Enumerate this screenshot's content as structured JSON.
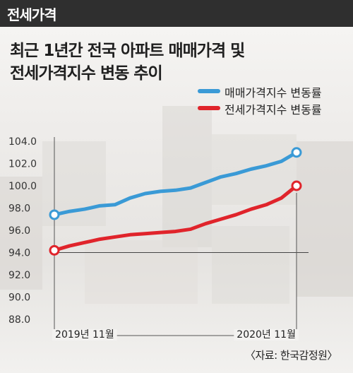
{
  "header": {
    "tag": "전세가격"
  },
  "title_lines": [
    "최근 1년간 전국 아파트 매매가격 및",
    "전세가격지수 변동 추이"
  ],
  "source": "〈자료: 한국감정원〉",
  "colors": {
    "sale": "#3a9ad6",
    "jeonse": "#e0242b",
    "header_bg": "#2f2f2f"
  },
  "chart_data": {
    "type": "line",
    "y_tick_labels": [
      "104.0",
      "102.0",
      "100.0",
      "98.0",
      "96.0",
      "94.0",
      "92.0",
      "90.0",
      "88.0"
    ],
    "ylim": [
      88,
      104
    ],
    "x_tick_labels": [
      "2019년 11월",
      "2020년 11월"
    ],
    "x_tick_index": [
      2,
      14
    ],
    "n_points": 17,
    "reference_line": 94,
    "legend_position": "top-right",
    "series": [
      {
        "name": "매매가격지수 변동률",
        "color": "#3a9ad6",
        "values": [
          97.4,
          97.7,
          97.9,
          98.2,
          98.3,
          98.9,
          99.3,
          99.5,
          99.6,
          99.8,
          100.3,
          100.8,
          101.1,
          101.5,
          101.8,
          102.2,
          103.0
        ]
      },
      {
        "name": "전세가격지수 변동률",
        "color": "#e0242b",
        "values": [
          94.2,
          94.6,
          94.9,
          95.2,
          95.4,
          95.6,
          95.7,
          95.8,
          95.9,
          96.1,
          96.6,
          97.0,
          97.4,
          97.9,
          98.3,
          98.9,
          100.0
        ]
      }
    ]
  }
}
